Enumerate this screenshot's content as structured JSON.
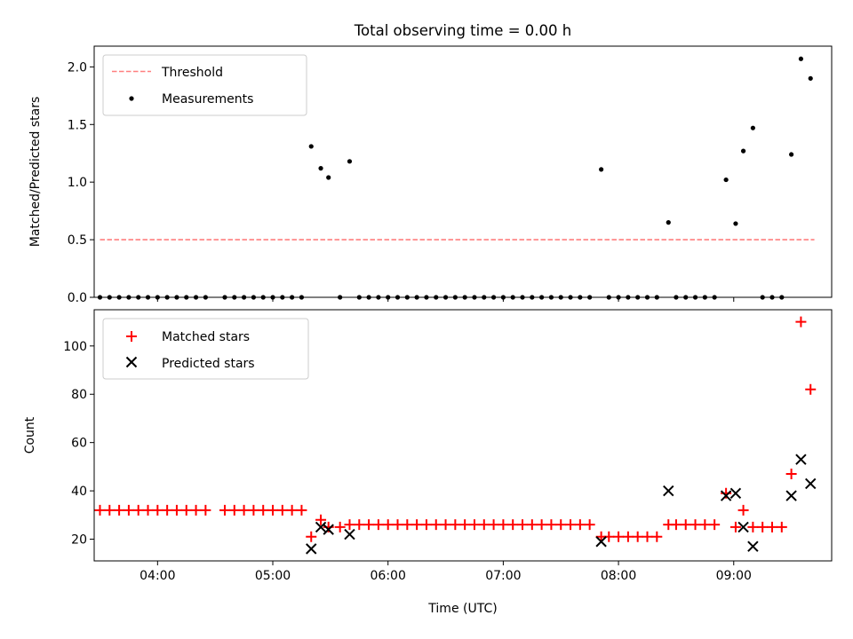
{
  "figure": {
    "title": "Total observing time = 0.00 h"
  },
  "chart_data": [
    {
      "type": "scatter",
      "panel": "top",
      "ylabel": "Matched/Predicted stars",
      "xlabel": "",
      "xlim": [
        "03:27",
        "09:51"
      ],
      "ylim": [
        0,
        2.18
      ],
      "yticks": [
        0.0,
        0.5,
        1.0,
        1.5,
        2.0
      ],
      "ytick_labels": [
        "0.0",
        "0.5",
        "1.0",
        "1.5",
        "2.0"
      ],
      "xticks": [
        "04:00",
        "05:00",
        "06:00",
        "07:00",
        "08:00",
        "09:00"
      ],
      "show_xtick_labels": false,
      "grid": false,
      "legend_position": "upper-left",
      "threshold": {
        "name": "Threshold",
        "value": 0.5,
        "x_start": "03:30",
        "x_end": "09:42",
        "color": "#ff7f7f",
        "style": "dashed"
      },
      "series": [
        {
          "name": "Measurements",
          "marker": "dot",
          "color": "#000000",
          "points": [
            [
              "03:30",
              0
            ],
            [
              "03:35",
              0
            ],
            [
              "03:40",
              0
            ],
            [
              "03:45",
              0
            ],
            [
              "03:50",
              0
            ],
            [
              "03:55",
              0
            ],
            [
              "04:00",
              0
            ],
            [
              "04:05",
              0
            ],
            [
              "04:10",
              0
            ],
            [
              "04:15",
              0
            ],
            [
              "04:20",
              0
            ],
            [
              "04:25",
              0
            ],
            [
              "04:35",
              0
            ],
            [
              "04:40",
              0
            ],
            [
              "04:45",
              0
            ],
            [
              "04:50",
              0
            ],
            [
              "04:55",
              0
            ],
            [
              "05:00",
              0
            ],
            [
              "05:05",
              0
            ],
            [
              "05:10",
              0
            ],
            [
              "05:15",
              0
            ],
            [
              "05:20",
              1.31
            ],
            [
              "05:25",
              1.12
            ],
            [
              "05:29",
              1.04
            ],
            [
              "05:35",
              0
            ],
            [
              "05:40",
              1.18
            ],
            [
              "05:45",
              0
            ],
            [
              "05:50",
              0
            ],
            [
              "05:55",
              0
            ],
            [
              "06:00",
              0
            ],
            [
              "06:05",
              0
            ],
            [
              "06:10",
              0
            ],
            [
              "06:15",
              0
            ],
            [
              "06:20",
              0
            ],
            [
              "06:25",
              0
            ],
            [
              "06:30",
              0
            ],
            [
              "06:35",
              0
            ],
            [
              "06:40",
              0
            ],
            [
              "06:45",
              0
            ],
            [
              "06:50",
              0
            ],
            [
              "06:55",
              0
            ],
            [
              "07:00",
              0
            ],
            [
              "07:05",
              0
            ],
            [
              "07:10",
              0
            ],
            [
              "07:15",
              0
            ],
            [
              "07:20",
              0
            ],
            [
              "07:25",
              0
            ],
            [
              "07:30",
              0
            ],
            [
              "07:35",
              0
            ],
            [
              "07:40",
              0
            ],
            [
              "07:45",
              0
            ],
            [
              "07:51",
              1.11
            ],
            [
              "07:55",
              0
            ],
            [
              "08:00",
              0
            ],
            [
              "08:05",
              0
            ],
            [
              "08:10",
              0
            ],
            [
              "08:15",
              0
            ],
            [
              "08:20",
              0
            ],
            [
              "08:26",
              0.65
            ],
            [
              "08:30",
              0
            ],
            [
              "08:35",
              0
            ],
            [
              "08:40",
              0
            ],
            [
              "08:45",
              0
            ],
            [
              "08:50",
              0
            ],
            [
              "08:56",
              1.02
            ],
            [
              "09:01",
              0.64
            ],
            [
              "09:05",
              1.27
            ],
            [
              "09:10",
              1.47
            ],
            [
              "09:15",
              0
            ],
            [
              "09:20",
              0
            ],
            [
              "09:25",
              0
            ],
            [
              "09:30",
              1.24
            ],
            [
              "09:35",
              2.07
            ],
            [
              "09:40",
              1.9
            ]
          ]
        }
      ]
    },
    {
      "type": "scatter",
      "panel": "bottom",
      "ylabel": "Count",
      "xlabel": "Time (UTC)",
      "xlim": [
        "03:27",
        "09:51"
      ],
      "ylim": [
        11,
        115
      ],
      "yticks": [
        20,
        40,
        60,
        80,
        100
      ],
      "ytick_labels": [
        "20",
        "40",
        "60",
        "80",
        "100"
      ],
      "xticks": [
        "04:00",
        "05:00",
        "06:00",
        "07:00",
        "08:00",
        "09:00"
      ],
      "xtick_labels": [
        "04:00",
        "05:00",
        "06:00",
        "07:00",
        "08:00",
        "09:00"
      ],
      "grid": false,
      "legend_position": "upper-left",
      "series": [
        {
          "name": "Matched stars",
          "marker": "plus",
          "color": "#ff0000",
          "points": [
            [
              "03:30",
              32
            ],
            [
              "03:35",
              32
            ],
            [
              "03:40",
              32
            ],
            [
              "03:45",
              32
            ],
            [
              "03:50",
              32
            ],
            [
              "03:55",
              32
            ],
            [
              "04:00",
              32
            ],
            [
              "04:05",
              32
            ],
            [
              "04:10",
              32
            ],
            [
              "04:15",
              32
            ],
            [
              "04:20",
              32
            ],
            [
              "04:25",
              32
            ],
            [
              "04:35",
              32
            ],
            [
              "04:40",
              32
            ],
            [
              "04:45",
              32
            ],
            [
              "04:50",
              32
            ],
            [
              "04:55",
              32
            ],
            [
              "05:00",
              32
            ],
            [
              "05:05",
              32
            ],
            [
              "05:10",
              32
            ],
            [
              "05:15",
              32
            ],
            [
              "05:20",
              21
            ],
            [
              "05:25",
              28
            ],
            [
              "05:29",
              25
            ],
            [
              "05:35",
              25
            ],
            [
              "05:40",
              26
            ],
            [
              "05:45",
              26
            ],
            [
              "05:50",
              26
            ],
            [
              "05:55",
              26
            ],
            [
              "06:00",
              26
            ],
            [
              "06:05",
              26
            ],
            [
              "06:10",
              26
            ],
            [
              "06:15",
              26
            ],
            [
              "06:20",
              26
            ],
            [
              "06:25",
              26
            ],
            [
              "06:30",
              26
            ],
            [
              "06:35",
              26
            ],
            [
              "06:40",
              26
            ],
            [
              "06:45",
              26
            ],
            [
              "06:50",
              26
            ],
            [
              "06:55",
              26
            ],
            [
              "07:00",
              26
            ],
            [
              "07:05",
              26
            ],
            [
              "07:10",
              26
            ],
            [
              "07:15",
              26
            ],
            [
              "07:20",
              26
            ],
            [
              "07:25",
              26
            ],
            [
              "07:30",
              26
            ],
            [
              "07:35",
              26
            ],
            [
              "07:40",
              26
            ],
            [
              "07:45",
              26
            ],
            [
              "07:51",
              21
            ],
            [
              "07:55",
              21
            ],
            [
              "08:00",
              21
            ],
            [
              "08:05",
              21
            ],
            [
              "08:10",
              21
            ],
            [
              "08:15",
              21
            ],
            [
              "08:20",
              21
            ],
            [
              "08:26",
              26
            ],
            [
              "08:30",
              26
            ],
            [
              "08:35",
              26
            ],
            [
              "08:40",
              26
            ],
            [
              "08:45",
              26
            ],
            [
              "08:50",
              26
            ],
            [
              "08:56",
              39
            ],
            [
              "09:01",
              25
            ],
            [
              "09:05",
              32
            ],
            [
              "09:10",
              25
            ],
            [
              "09:15",
              25
            ],
            [
              "09:20",
              25
            ],
            [
              "09:25",
              25
            ],
            [
              "09:30",
              47
            ],
            [
              "09:35",
              110
            ],
            [
              "09:40",
              82
            ]
          ]
        },
        {
          "name": "Predicted stars",
          "marker": "x",
          "color": "#000000",
          "points": [
            [
              "05:20",
              16
            ],
            [
              "05:25",
              25
            ],
            [
              "05:29",
              24
            ],
            [
              "05:40",
              22
            ],
            [
              "07:51",
              19
            ],
            [
              "08:26",
              40
            ],
            [
              "08:56",
              38
            ],
            [
              "09:01",
              39
            ],
            [
              "09:05",
              25
            ],
            [
              "09:10",
              17
            ],
            [
              "09:30",
              38
            ],
            [
              "09:35",
              53
            ],
            [
              "09:40",
              43
            ]
          ]
        }
      ]
    }
  ]
}
